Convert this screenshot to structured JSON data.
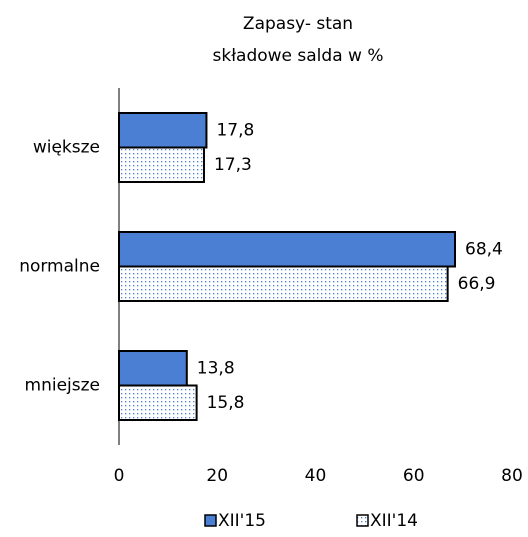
{
  "chart_data": {
    "type": "hbar",
    "title": "Zapasy- stan",
    "subtitle": "składowe salda w %",
    "categories": [
      "większe",
      "normalne",
      "mniejsze"
    ],
    "series": [
      {
        "name": "XII'15",
        "color": "#4a7fd4",
        "fill": "solid",
        "values": [
          17.8,
          68.4,
          13.8
        ],
        "value_labels": [
          "17,8",
          "68,4",
          "13,8"
        ]
      },
      {
        "name": "XII'14",
        "color": "#4a7fd4",
        "fill": "dots",
        "values": [
          17.3,
          66.9,
          15.8
        ],
        "value_labels": [
          "17,3",
          "66,9",
          "15,8"
        ]
      }
    ],
    "xlim": [
      0,
      80
    ],
    "xticks": [
      0,
      20,
      40,
      60,
      80
    ],
    "grid": false,
    "legend": "bottom"
  }
}
